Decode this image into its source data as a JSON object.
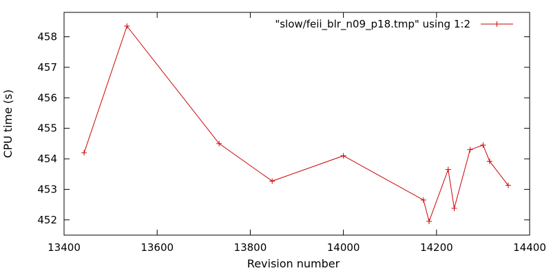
{
  "chart_data": {
    "type": "line",
    "title": "",
    "xlabel": "Revision number",
    "ylabel": "CPU time (s)",
    "xlim": [
      13400,
      14400
    ],
    "ylim": [
      451.5,
      458.8
    ],
    "xticks": [
      13400,
      13600,
      13800,
      14000,
      14200,
      14400
    ],
    "yticks": [
      452,
      453,
      454,
      455,
      456,
      457,
      458
    ],
    "grid": false,
    "legend_position": "top-right",
    "series": [
      {
        "name": "\"slow/feii_blr_n09_p18.tmp\" using 1:2",
        "color": "#cc0000",
        "marker": "plus",
        "x": [
          13443,
          13535,
          13733,
          13847,
          14000,
          14172,
          14184,
          14225,
          14238,
          14272,
          14300,
          14314,
          14354
        ],
        "values": [
          454.2,
          458.35,
          454.5,
          453.27,
          454.1,
          452.65,
          451.95,
          453.65,
          452.38,
          454.3,
          454.45,
          453.92,
          453.13
        ]
      }
    ]
  }
}
